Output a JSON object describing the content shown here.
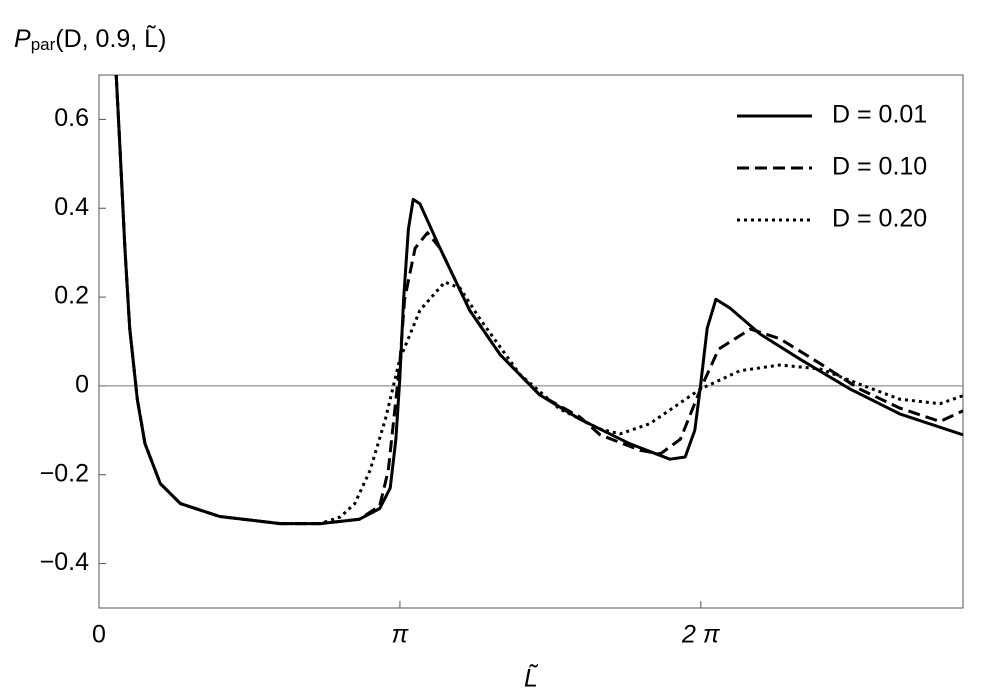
{
  "chart_data": {
    "type": "line",
    "ylabel": {
      "main": "P",
      "subscript": "par",
      "args": "(D, 0.9, L̃)"
    },
    "xlabel": "L̃",
    "xlim": [
      0,
      9.02
    ],
    "ylim": [
      -0.5,
      0.7
    ],
    "xticks": [
      0,
      {
        "value": 3.14159,
        "label": "π"
      },
      {
        "value": 6.28319,
        "label": "2 π"
      }
    ],
    "yticks": [
      {
        "value": -0.4,
        "label": "−0.4"
      },
      {
        "value": -0.2,
        "label": "−0.2"
      },
      0,
      0.2,
      0.4,
      0.6
    ],
    "legend": "top-right",
    "series": [
      {
        "name": "D = 0.01",
        "color": "#000000",
        "dash": "solid",
        "x": [
          0.18,
          0.22,
          0.27,
          0.32,
          0.4,
          0.48,
          0.64,
          0.85,
          1.26,
          1.89,
          2.31,
          2.72,
          2.93,
          3.04,
          3.1,
          3.14,
          3.18,
          3.23,
          3.28,
          3.35,
          3.56,
          3.87,
          4.19,
          4.6,
          5.02,
          5.54,
          5.96,
          6.12,
          6.22,
          6.28,
          6.35,
          6.44,
          6.59,
          6.9,
          7.32,
          7.84,
          8.36,
          9.02
        ],
        "values": [
          0.7,
          0.53,
          0.31,
          0.13,
          -0.03,
          -0.13,
          -0.22,
          -0.265,
          -0.294,
          -0.31,
          -0.31,
          -0.3,
          -0.276,
          -0.23,
          -0.12,
          0.016,
          0.195,
          0.353,
          0.42,
          0.41,
          0.31,
          0.17,
          0.07,
          -0.02,
          -0.075,
          -0.13,
          -0.165,
          -0.16,
          -0.1,
          0,
          0.13,
          0.195,
          0.175,
          0.117,
          0.06,
          -0.007,
          -0.063,
          -0.11
        ]
      },
      {
        "name": "D = 0.10",
        "color": "#000000",
        "dash": "dashed",
        "x": [
          0.18,
          0.22,
          0.27,
          0.32,
          0.4,
          0.48,
          0.64,
          0.85,
          1.26,
          1.89,
          2.31,
          2.72,
          2.93,
          3.02,
          3.09,
          3.14,
          3.19,
          3.3,
          3.43,
          3.56,
          3.87,
          4.19,
          4.6,
          5.02,
          5.23,
          5.65,
          5.86,
          6.07,
          6.28,
          6.47,
          6.8,
          7.11,
          7.53,
          7.94,
          8.36,
          8.78,
          9.02
        ],
        "values": [
          0.7,
          0.53,
          0.31,
          0.13,
          -0.03,
          -0.13,
          -0.22,
          -0.265,
          -0.294,
          -0.31,
          -0.31,
          -0.3,
          -0.27,
          -0.19,
          -0.05,
          0.05,
          0.195,
          0.31,
          0.345,
          0.31,
          0.17,
          0.07,
          -0.02,
          -0.07,
          -0.11,
          -0.145,
          -0.153,
          -0.12,
          -0.007,
          0.083,
          0.128,
          0.106,
          0.05,
          -0.007,
          -0.05,
          -0.08,
          -0.056
        ]
      },
      {
        "name": "D = 0.20",
        "color": "#000000",
        "dash": "dotted",
        "x": [
          0.18,
          0.22,
          0.27,
          0.32,
          0.4,
          0.48,
          0.64,
          0.85,
          1.26,
          1.89,
          2.31,
          2.52,
          2.67,
          2.83,
          2.99,
          3.14,
          3.35,
          3.61,
          3.77,
          3.98,
          4.39,
          4.81,
          5.23,
          5.44,
          5.75,
          6.28,
          6.69,
          7.11,
          7.53,
          7.94,
          8.36,
          8.78,
          9.02
        ],
        "values": [
          0.7,
          0.53,
          0.31,
          0.13,
          -0.03,
          -0.13,
          -0.22,
          -0.265,
          -0.294,
          -0.31,
          -0.31,
          -0.295,
          -0.265,
          -0.19,
          -0.075,
          0.06,
          0.17,
          0.234,
          0.22,
          0.15,
          0.027,
          -0.052,
          -0.097,
          -0.108,
          -0.085,
          -0.007,
          0.034,
          0.047,
          0.038,
          0.004,
          -0.03,
          -0.04,
          -0.022
        ]
      }
    ]
  }
}
